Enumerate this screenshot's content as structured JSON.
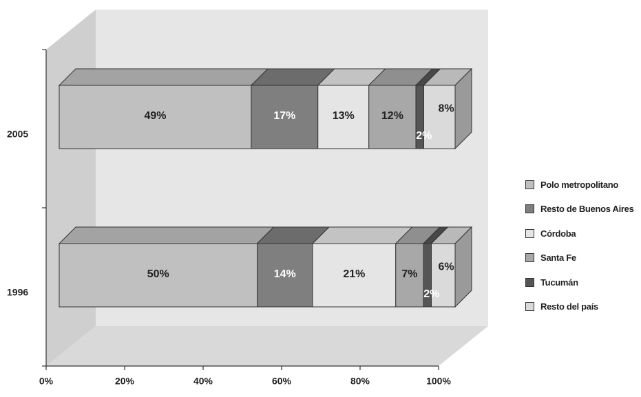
{
  "chart_data": {
    "type": "bar",
    "stacked": true,
    "orientation": "horizontal",
    "three_d": true,
    "categories": [
      "2005",
      "1996"
    ],
    "series": [
      {
        "name": "Polo metropolitano",
        "values": [
          49,
          50
        ],
        "labels": [
          "49%",
          "50%"
        ],
        "color": "#c0c0c0"
      },
      {
        "name": "Resto de Buenos Aires",
        "values": [
          17,
          14
        ],
        "labels": [
          "17%",
          "14%"
        ],
        "color": "#7f7f7f"
      },
      {
        "name": "Córdoba",
        "values": [
          13,
          21
        ],
        "labels": [
          "13%",
          "21%"
        ],
        "color": "#e5e5e5"
      },
      {
        "name": "Santa Fe",
        "values": [
          12,
          7
        ],
        "labels": [
          "12%",
          "7%"
        ],
        "color": "#a8a8a8"
      },
      {
        "name": "Tucumán",
        "values": [
          2,
          2
        ],
        "labels": [
          "2%",
          "2%"
        ],
        "color": "#555555"
      },
      {
        "name": "Resto del país",
        "values": [
          8,
          6
        ],
        "labels": [
          "8%",
          "6%"
        ],
        "color": "#dadada"
      }
    ],
    "xticks": [
      "0%",
      "20%",
      "40%",
      "60%",
      "80%",
      "100%"
    ],
    "xlim": [
      0,
      100
    ],
    "legend_position": "right",
    "grid": false
  }
}
